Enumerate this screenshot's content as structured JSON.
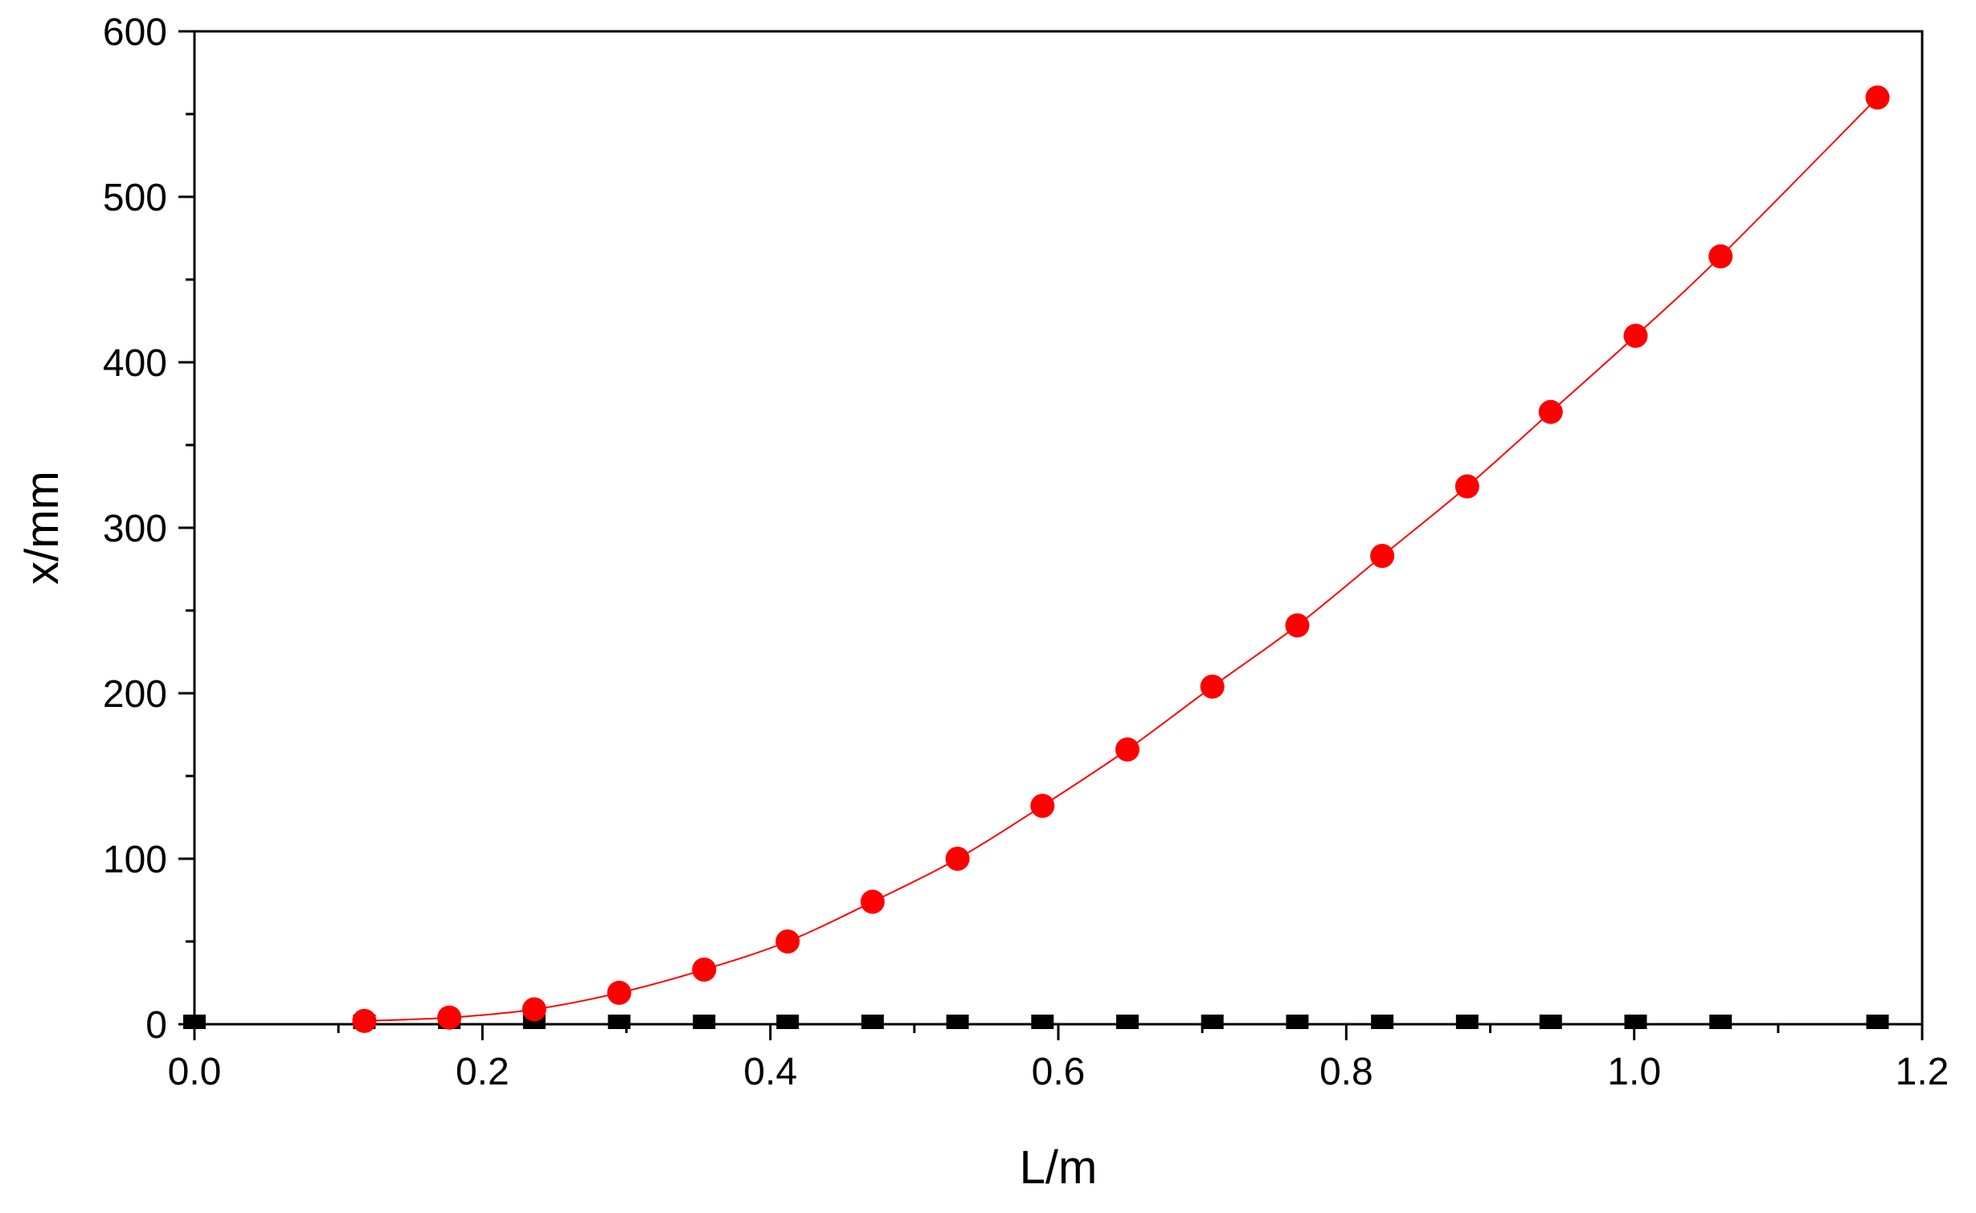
{
  "chart_data": {
    "type": "scatter",
    "xlabel": "L/m",
    "ylabel": "x/mm",
    "xlim": [
      0.0,
      1.2
    ],
    "ylim": [
      0,
      600
    ],
    "x_ticks": [
      "0.0",
      "0.2",
      "0.4",
      "0.6",
      "0.8",
      "1.0",
      "1.2"
    ],
    "y_ticks": [
      "0",
      "100",
      "200",
      "300",
      "400",
      "500",
      "600"
    ],
    "grid": false,
    "legend": "none",
    "series": [
      {
        "marker": "square",
        "color": "#000000",
        "x": [
          0.0,
          0.118,
          0.177,
          0.236,
          0.295,
          0.354,
          0.412,
          0.471,
          0.53,
          0.589,
          0.648,
          0.707,
          0.766,
          0.825,
          0.884,
          0.942,
          1.001,
          1.06,
          1.169
        ],
        "y": [
          0,
          0,
          0,
          0,
          0,
          0,
          0,
          0,
          0,
          0,
          0,
          0,
          0,
          0,
          0,
          0,
          0,
          0,
          0
        ]
      },
      {
        "marker": "circle",
        "color": "#ff0000",
        "line": "smooth",
        "x": [
          0.118,
          0.177,
          0.236,
          0.295,
          0.354,
          0.412,
          0.471,
          0.53,
          0.589,
          0.648,
          0.707,
          0.766,
          0.825,
          0.884,
          0.942,
          1.001,
          1.06,
          1.169
        ],
        "y": [
          2,
          4,
          9,
          19,
          33,
          50,
          74,
          100,
          132,
          166,
          204,
          241,
          283,
          325,
          370,
          416,
          464,
          560
        ]
      }
    ]
  }
}
